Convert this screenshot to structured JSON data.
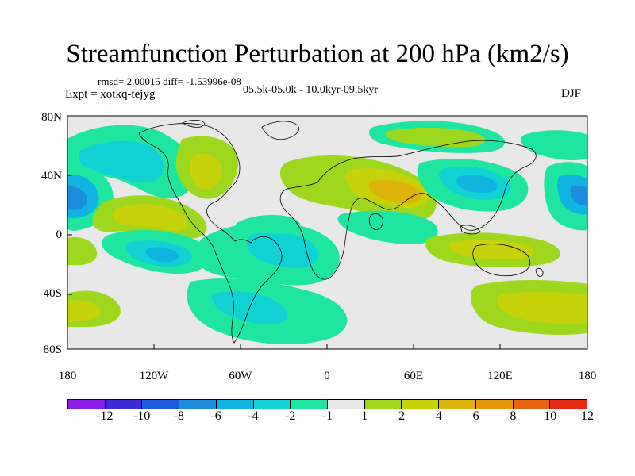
{
  "header": {
    "title": "Streamfunction Perturbation at 200 hPa (km2/s)",
    "stats": "rmsd= 2.00015 diff= -1.53996e-08",
    "experiment": "Expt = xotkq-tejyg",
    "period": "05.5k-05.0k - 10.0kyr-09.5kyr",
    "season": "DJF"
  },
  "axes": {
    "lat_labels": [
      "80N",
      "40N",
      "0",
      "40S",
      "80S"
    ],
    "lon_labels": [
      "180",
      "120W",
      "60W",
      "0",
      "60E",
      "120E",
      "180"
    ]
  },
  "colorbar": {
    "colors": [
      "#8a1ee6",
      "#3c2cd6",
      "#1e5adc",
      "#1c8cdc",
      "#10b4e0",
      "#10d2d2",
      "#1ee6a0",
      "#e8e8e8",
      "#9ed81e",
      "#c8d20a",
      "#dcb40a",
      "#e6960a",
      "#e66414",
      "#e62a14"
    ],
    "labels": [
      "-12",
      "-10",
      "-8",
      "-6",
      "-4",
      "-2",
      "-1",
      "1",
      "2",
      "4",
      "6",
      "8",
      "10",
      "12"
    ]
  },
  "map_colors": {
    "background": "#e8e8e8",
    "coast": "#000000"
  }
}
